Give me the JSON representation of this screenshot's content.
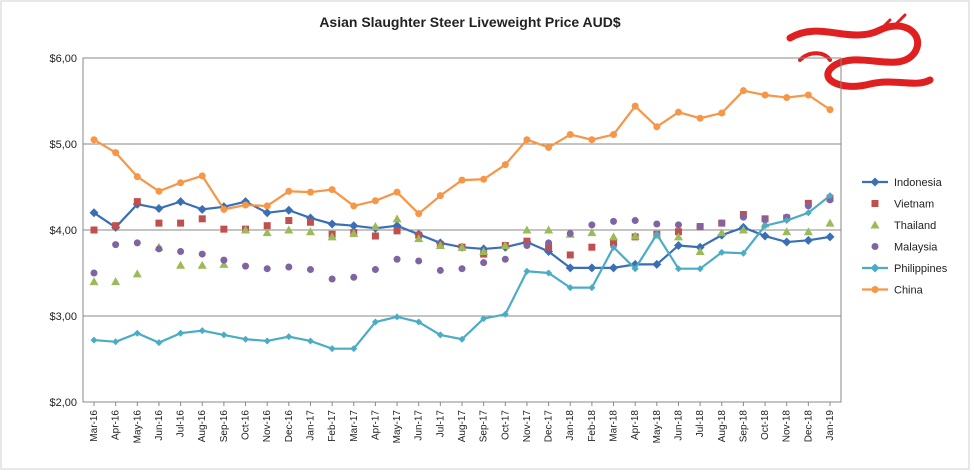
{
  "chart_data": {
    "type": "line",
    "title": "Asian Slaughter Steer Liveweight Price AUD$",
    "categories": [
      "Mar-16",
      "Apr-16",
      "May-16",
      "Jun-16",
      "Jul-16",
      "Aug-16",
      "Sep-16",
      "Oct-16",
      "Nov-16",
      "Dec-16",
      "Jan-17",
      "Feb-17",
      "Mar-17",
      "Apr-17",
      "May-17",
      "Jun-17",
      "Jul-17",
      "Aug-17",
      "Sep-17",
      "Oct-17",
      "Nov-17",
      "Dec-17",
      "Jan-18",
      "Feb-18",
      "Mar-18",
      "Apr-18",
      "May-18",
      "Jun-18",
      "Jul-18",
      "Aug-18",
      "Sep-18",
      "Oct-18",
      "Nov-18",
      "Dec-18",
      "Jan-19"
    ],
    "ylim": [
      2,
      6
    ],
    "yticks": [
      {
        "value": 2,
        "label": "$2,00"
      },
      {
        "value": 3,
        "label": "$3,00"
      },
      {
        "value": 4,
        "label": "$4,00"
      },
      {
        "value": 5,
        "label": "$5,00"
      },
      {
        "value": 6,
        "label": "$6,00"
      }
    ],
    "grid": true,
    "legend": "right",
    "series": [
      {
        "name": "Indonesia",
        "color": "#3a6fb5",
        "line": true,
        "marker": "diamond",
        "values": [
          4.2,
          4.03,
          4.3,
          4.25,
          4.33,
          4.24,
          4.27,
          4.33,
          4.2,
          4.23,
          4.14,
          4.07,
          4.05,
          4.02,
          4.05,
          3.95,
          3.85,
          3.8,
          3.78,
          3.8,
          3.86,
          3.75,
          3.56,
          3.56,
          3.56,
          3.6,
          3.6,
          3.82,
          3.8,
          3.94,
          4.03,
          3.93,
          3.86,
          3.88,
          3.92
        ]
      },
      {
        "name": "Vietnam",
        "color": "#c0504d",
        "line": false,
        "marker": "square",
        "values": [
          4.0,
          4.05,
          4.33,
          4.08,
          4.08,
          4.13,
          4.01,
          4.01,
          4.05,
          4.11,
          4.09,
          3.95,
          3.97,
          3.93,
          3.99,
          3.94,
          3.83,
          3.8,
          3.72,
          3.82,
          3.87,
          3.8,
          3.71,
          3.8,
          3.85,
          3.92,
          3.95,
          3.98,
          4.04,
          4.08,
          4.18,
          4.13,
          4.14,
          4.31,
          4.37
        ]
      },
      {
        "name": "Thailand",
        "color": "#9bbb59",
        "line": false,
        "marker": "triangle",
        "values": [
          3.4,
          3.4,
          3.49,
          3.8,
          3.59,
          3.59,
          3.6,
          4.0,
          3.97,
          4.0,
          3.98,
          3.92,
          3.96,
          4.04,
          4.13,
          3.9,
          3.82,
          3.8,
          3.75,
          3.82,
          4.0,
          4.0,
          3.95,
          3.97,
          3.92,
          3.93,
          3.94,
          3.92,
          3.75,
          3.97,
          4.0,
          4.07,
          3.98,
          3.98,
          4.08
        ]
      },
      {
        "name": "Malaysia",
        "color": "#8064a2",
        "line": false,
        "marker": "circle",
        "values": [
          3.5,
          3.83,
          3.85,
          3.78,
          3.75,
          3.72,
          3.65,
          3.58,
          3.55,
          3.57,
          3.54,
          3.43,
          3.45,
          3.54,
          3.66,
          3.64,
          3.53,
          3.55,
          3.62,
          3.66,
          3.82,
          3.85,
          3.96,
          4.06,
          4.1,
          4.11,
          4.07,
          4.06,
          4.04,
          4.08,
          4.15,
          4.12,
          4.15,
          4.28,
          4.35
        ]
      },
      {
        "name": "Philippines",
        "color": "#4bacc6",
        "line": true,
        "marker": "diamond",
        "values": [
          2.72,
          2.7,
          2.8,
          2.69,
          2.8,
          2.83,
          2.78,
          2.73,
          2.71,
          2.76,
          2.71,
          2.62,
          2.62,
          2.93,
          2.99,
          2.93,
          2.78,
          2.73,
          2.97,
          3.02,
          3.52,
          3.5,
          3.33,
          3.33,
          3.8,
          3.55,
          3.95,
          3.55,
          3.55,
          3.74,
          3.73,
          4.05,
          4.11,
          4.2,
          4.4
        ]
      },
      {
        "name": "China",
        "color": "#f79646",
        "line": true,
        "marker": "circle",
        "values": [
          5.05,
          4.9,
          4.62,
          4.45,
          4.55,
          4.63,
          4.24,
          4.29,
          4.28,
          4.45,
          4.44,
          4.47,
          4.28,
          4.34,
          4.44,
          4.19,
          4.4,
          4.58,
          4.59,
          4.76,
          5.05,
          4.96,
          5.11,
          5.05,
          5.11,
          5.44,
          5.2,
          5.37,
          5.3,
          5.36,
          5.62,
          5.57,
          5.54,
          5.57,
          5.4
        ]
      }
    ]
  }
}
